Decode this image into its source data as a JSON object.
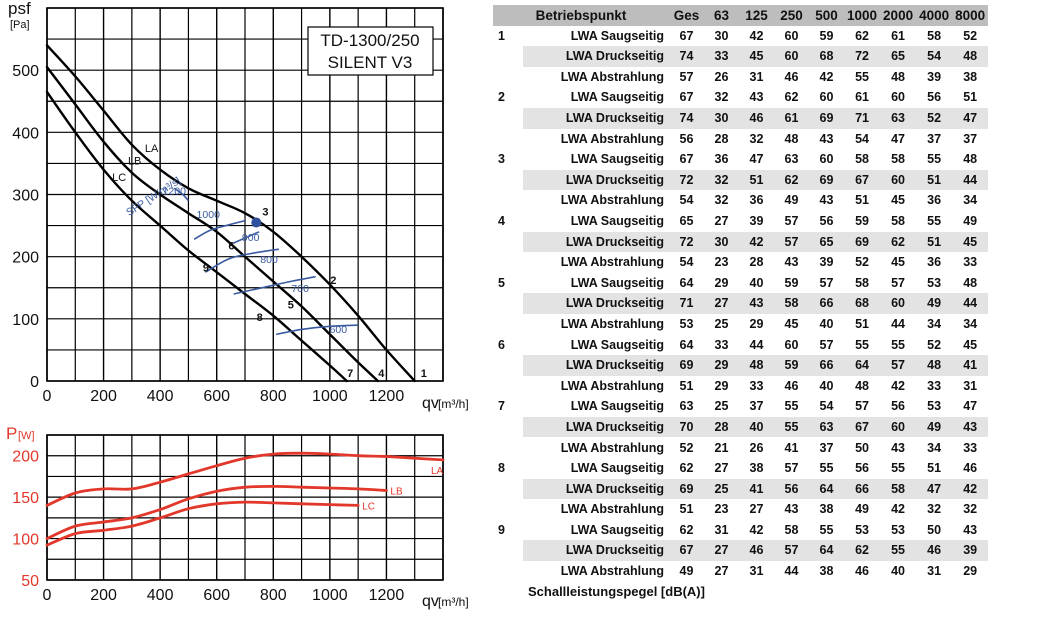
{
  "chart_data": [
    {
      "type": "line",
      "title": "",
      "model_label_line1": "TD-1300/250",
      "model_label_line2": "SILENT V3",
      "ylabel_main": "psf",
      "ylabel_unit": "[Pa]",
      "xlabel_main": "qv",
      "xlabel_unit": "[m³/h]",
      "xlim": [
        0,
        1400
      ],
      "ylim": [
        0,
        600
      ],
      "xticks": [
        0,
        200,
        400,
        600,
        800,
        1000,
        1200
      ],
      "yticks": [
        0,
        100,
        200,
        300,
        400,
        500
      ],
      "grid": true,
      "series": [
        {
          "name": "LA",
          "x": [
            0,
            100,
            200,
            300,
            400,
            500,
            600,
            700,
            800,
            900,
            1000,
            1100,
            1200,
            1300
          ],
          "y": [
            540,
            490,
            435,
            380,
            340,
            310,
            290,
            270,
            240,
            200,
            155,
            105,
            50,
            0
          ]
        },
        {
          "name": "LB",
          "x": [
            0,
            100,
            200,
            300,
            400,
            500,
            600,
            700,
            800,
            900,
            1000,
            1100,
            1170
          ],
          "y": [
            505,
            445,
            385,
            335,
            300,
            270,
            240,
            200,
            160,
            120,
            75,
            30,
            0
          ]
        },
        {
          "name": "LC",
          "x": [
            0,
            100,
            200,
            300,
            400,
            500,
            600,
            700,
            800,
            900,
            1000,
            1060
          ],
          "y": [
            465,
            400,
            340,
            290,
            250,
            210,
            175,
            140,
            105,
            65,
            25,
            0
          ]
        }
      ],
      "sfp_label": "SFP [W/m³/s]",
      "sfp_curves": [
        {
          "label": "1200",
          "points": [
            [
              450,
              310
            ],
            [
              480,
              300
            ],
            [
              500,
              290
            ]
          ],
          "label_at": [
            450,
            300
          ]
        },
        {
          "label": "1000",
          "points": [
            [
              520,
              228
            ],
            [
              580,
              243
            ],
            [
              650,
              252
            ],
            [
              700,
              258
            ]
          ],
          "label_at": [
            570,
            262
          ]
        },
        {
          "label": "900",
          "points": [
            [
              660,
              222
            ],
            [
              710,
              232
            ],
            [
              750,
              240
            ]
          ],
          "label_at": [
            720,
            225
          ]
        },
        {
          "label": "800",
          "points": [
            [
              560,
              175
            ],
            [
              640,
              196
            ],
            [
              720,
              205
            ],
            [
              820,
              212
            ]
          ],
          "label_at": [
            785,
            190
          ]
        },
        {
          "label": "700",
          "points": [
            [
              660,
              140
            ],
            [
              760,
              150
            ],
            [
              860,
              160
            ],
            [
              950,
              168
            ]
          ],
          "label_at": [
            895,
            143
          ]
        },
        {
          "label": "600",
          "points": [
            [
              810,
              75
            ],
            [
              900,
              83
            ],
            [
              1000,
              88
            ],
            [
              1100,
              90
            ]
          ],
          "label_at": [
            1030,
            77
          ]
        }
      ],
      "curve_labels": [
        {
          "text": "LA",
          "x": 370,
          "y": 368
        },
        {
          "text": "LB",
          "x": 310,
          "y": 348
        },
        {
          "text": "LC",
          "x": 255,
          "y": 322
        }
      ],
      "operating_points": [
        {
          "label": "1",
          "x": 1300,
          "y": 0
        },
        {
          "label": "2",
          "x": 980,
          "y": 150
        },
        {
          "label": "3",
          "x": 740,
          "y": 260
        },
        {
          "label": "4",
          "x": 1150,
          "y": 0
        },
        {
          "label": "5",
          "x": 830,
          "y": 110
        },
        {
          "label": "6",
          "x": 620,
          "y": 205
        },
        {
          "label": "7",
          "x": 1040,
          "y": 0
        },
        {
          "label": "8",
          "x": 720,
          "y": 90
        },
        {
          "label": "9",
          "x": 530,
          "y": 170
        }
      ],
      "highlight_point": {
        "label": "3",
        "x": 740,
        "y": 255
      }
    },
    {
      "type": "line",
      "title": "",
      "ylabel_main": "P",
      "ylabel_unit": "[W]",
      "xlabel_main": "qv",
      "xlabel_unit": "[m³/h]",
      "xlim": [
        0,
        1400
      ],
      "ylim": [
        50,
        225
      ],
      "xticks": [
        0,
        200,
        400,
        600,
        800,
        1000,
        1200
      ],
      "yticks": [
        50,
        100,
        150,
        200
      ],
      "grid": true,
      "series": [
        {
          "name": "LA",
          "x": [
            0,
            100,
            200,
            300,
            400,
            500,
            600,
            700,
            800,
            900,
            1000,
            1100,
            1200,
            1300,
            1400
          ],
          "y": [
            140,
            155,
            160,
            160,
            168,
            178,
            188,
            197,
            202,
            203,
            202,
            200,
            199,
            197,
            195
          ]
        },
        {
          "name": "LB",
          "x": [
            0,
            100,
            200,
            300,
            400,
            500,
            600,
            700,
            800,
            900,
            1000,
            1100,
            1200
          ],
          "y": [
            100,
            115,
            120,
            125,
            135,
            148,
            157,
            162,
            163,
            162,
            161,
            160,
            158
          ]
        },
        {
          "name": "LC",
          "x": [
            0,
            100,
            200,
            300,
            400,
            500,
            600,
            700,
            800,
            900,
            1000,
            1100
          ],
          "y": [
            92,
            106,
            110,
            115,
            125,
            136,
            142,
            144,
            143,
            142,
            141,
            140
          ]
        }
      ]
    },
    {
      "type": "table",
      "header": [
        "Betriebspunkt",
        "Ges",
        "63",
        "125",
        "250",
        "500",
        "1000",
        "2000",
        "4000",
        "8000"
      ],
      "points": [
        {
          "point": "1",
          "rows": [
            {
              "label": "LWA Saugseitig",
              "values": [
                67,
                30,
                42,
                60,
                59,
                62,
                61,
                58,
                52
              ]
            },
            {
              "label": "LWA Druckseitig",
              "values": [
                74,
                33,
                45,
                60,
                68,
                72,
                65,
                54,
                48
              ]
            },
            {
              "label": "LWA Abstrahlung",
              "values": [
                57,
                26,
                31,
                46,
                42,
                55,
                48,
                39,
                38
              ]
            }
          ]
        },
        {
          "point": "2",
          "rows": [
            {
              "label": "LWA Saugseitig",
              "values": [
                67,
                32,
                43,
                62,
                60,
                61,
                60,
                56,
                51
              ]
            },
            {
              "label": "LWA Druckseitig",
              "values": [
                74,
                30,
                46,
                61,
                69,
                71,
                63,
                52,
                47
              ]
            },
            {
              "label": "LWA Abstrahlung",
              "values": [
                56,
                28,
                32,
                48,
                43,
                54,
                47,
                37,
                37
              ]
            }
          ]
        },
        {
          "point": "3",
          "rows": [
            {
              "label": "LWA Saugseitig",
              "values": [
                67,
                36,
                47,
                63,
                60,
                58,
                58,
                55,
                48
              ]
            },
            {
              "label": "LWA Druckseitig",
              "values": [
                72,
                32,
                51,
                62,
                69,
                67,
                60,
                51,
                44
              ]
            },
            {
              "label": "LWA Abstrahlung",
              "values": [
                54,
                32,
                36,
                49,
                43,
                51,
                45,
                36,
                34
              ]
            }
          ]
        },
        {
          "point": "4",
          "rows": [
            {
              "label": "LWA Saugseitig",
              "values": [
                65,
                27,
                39,
                57,
                56,
                59,
                58,
                55,
                49
              ]
            },
            {
              "label": "LWA Druckseitig",
              "values": [
                72,
                30,
                42,
                57,
                65,
                69,
                62,
                51,
                45
              ]
            },
            {
              "label": "LWA Abstrahlung",
              "values": [
                54,
                23,
                28,
                43,
                39,
                52,
                45,
                36,
                33
              ]
            }
          ]
        },
        {
          "point": "5",
          "rows": [
            {
              "label": "LWA Saugseitig",
              "values": [
                64,
                29,
                40,
                59,
                57,
                58,
                57,
                53,
                48
              ]
            },
            {
              "label": "LWA Druckseitig",
              "values": [
                71,
                27,
                43,
                58,
                66,
                68,
                60,
                49,
                44
              ]
            },
            {
              "label": "LWA Abstrahlung",
              "values": [
                53,
                25,
                29,
                45,
                40,
                51,
                44,
                34,
                34
              ]
            }
          ]
        },
        {
          "point": "6",
          "rows": [
            {
              "label": "LWA Saugseitig",
              "values": [
                64,
                33,
                44,
                60,
                57,
                55,
                55,
                52,
                45
              ]
            },
            {
              "label": "LWA Druckseitig",
              "values": [
                69,
                29,
                48,
                59,
                66,
                64,
                57,
                48,
                41
              ]
            },
            {
              "label": "LWA Abstrahlung",
              "values": [
                51,
                29,
                33,
                46,
                40,
                48,
                42,
                33,
                31
              ]
            }
          ]
        },
        {
          "point": "7",
          "rows": [
            {
              "label": "LWA Saugseitig",
              "values": [
                63,
                25,
                37,
                55,
                54,
                57,
                56,
                53,
                47
              ]
            },
            {
              "label": "LWA Druckseitig",
              "values": [
                70,
                28,
                40,
                55,
                63,
                67,
                60,
                49,
                43
              ]
            },
            {
              "label": "LWA Abstrahlung",
              "values": [
                52,
                21,
                26,
                41,
                37,
                50,
                43,
                34,
                33
              ]
            }
          ]
        },
        {
          "point": "8",
          "rows": [
            {
              "label": "LWA Saugseitig",
              "values": [
                62,
                27,
                38,
                57,
                55,
                56,
                55,
                51,
                46
              ]
            },
            {
              "label": "LWA Druckseitig",
              "values": [
                69,
                25,
                41,
                56,
                64,
                66,
                58,
                47,
                42
              ]
            },
            {
              "label": "LWA Abstrahlung",
              "values": [
                51,
                23,
                27,
                43,
                38,
                49,
                42,
                32,
                32
              ]
            }
          ]
        },
        {
          "point": "9",
          "rows": [
            {
              "label": "LWA Saugseitig",
              "values": [
                62,
                31,
                42,
                58,
                55,
                53,
                53,
                50,
                43
              ]
            },
            {
              "label": "LWA Druckseitig",
              "values": [
                67,
                27,
                46,
                57,
                64,
                62,
                55,
                46,
                39
              ]
            },
            {
              "label": "LWA Abstrahlung",
              "values": [
                49,
                27,
                31,
                44,
                38,
                46,
                40,
                31,
                29
              ]
            }
          ]
        }
      ],
      "caption": "Schallleistungspegel [dB(A)]"
    }
  ],
  "colors": {
    "curve": "#000000",
    "power": "#e2382b",
    "sfp": "#3a5aa0",
    "point": "#2e4f9c",
    "header_bg": "#bdbdbd",
    "row_bg": "#e3e3e3"
  }
}
